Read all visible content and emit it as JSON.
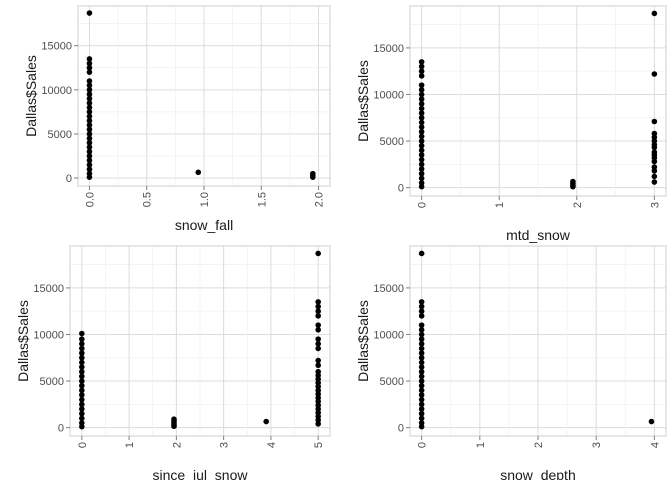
{
  "chart_data": [
    {
      "type": "scatter",
      "xlabel": "snow_fall",
      "ylabel": "Dallas$Sales",
      "xlim": [
        -0.1,
        2.1
      ],
      "ylim": [
        -900,
        19500
      ],
      "x_ticks": [
        0,
        0.5,
        1,
        1.5,
        2
      ],
      "x_tick_labels": [
        "0.0",
        "0.5",
        "1.0",
        "1.5",
        "2.0"
      ],
      "y_ticks": [
        0,
        5000,
        10000,
        15000
      ],
      "y_tick_labels": [
        "0",
        "5000",
        "10000",
        "15000"
      ],
      "grid": true,
      "points": [
        [
          0,
          18700
        ],
        [
          0,
          13500
        ],
        [
          0,
          13000
        ],
        [
          0,
          12500
        ],
        [
          0,
          12000
        ],
        [
          0,
          11000
        ],
        [
          0,
          10500
        ],
        [
          0,
          10000
        ],
        [
          0,
          9500
        ],
        [
          0,
          9000
        ],
        [
          0,
          8500
        ],
        [
          0,
          8000
        ],
        [
          0,
          7500
        ],
        [
          0,
          7000
        ],
        [
          0,
          6500
        ],
        [
          0,
          6000
        ],
        [
          0,
          5500
        ],
        [
          0,
          5000
        ],
        [
          0,
          4500
        ],
        [
          0,
          4000
        ],
        [
          0,
          3500
        ],
        [
          0,
          3000
        ],
        [
          0,
          2500
        ],
        [
          0,
          2000
        ],
        [
          0,
          1500
        ],
        [
          0,
          1000
        ],
        [
          0,
          500
        ],
        [
          0,
          100
        ],
        [
          0.95,
          650
        ],
        [
          1.95,
          500
        ],
        [
          1.95,
          300
        ],
        [
          1.95,
          100
        ]
      ]
    },
    {
      "type": "scatter",
      "xlabel": "mtd_snow",
      "ylabel": "Dallas$Sales",
      "xlim": [
        -0.15,
        3.15
      ],
      "ylim": [
        -900,
        19500
      ],
      "x_ticks": [
        0,
        1,
        2,
        3
      ],
      "x_tick_labels": [
        "0",
        "1",
        "2",
        "3"
      ],
      "y_ticks": [
        0,
        5000,
        10000,
        15000
      ],
      "y_tick_labels": [
        "0",
        "5000",
        "10000",
        "15000"
      ],
      "grid": true,
      "points": [
        [
          0,
          13500
        ],
        [
          0,
          13000
        ],
        [
          0,
          12500
        ],
        [
          0,
          12000
        ],
        [
          0,
          11000
        ],
        [
          0,
          10500
        ],
        [
          0,
          10000
        ],
        [
          0,
          9500
        ],
        [
          0,
          9000
        ],
        [
          0,
          8500
        ],
        [
          0,
          8000
        ],
        [
          0,
          7500
        ],
        [
          0,
          7000
        ],
        [
          0,
          6500
        ],
        [
          0,
          6000
        ],
        [
          0,
          5500
        ],
        [
          0,
          5000
        ],
        [
          0,
          4500
        ],
        [
          0,
          4000
        ],
        [
          0,
          3500
        ],
        [
          0,
          3000
        ],
        [
          0,
          2500
        ],
        [
          0,
          2000
        ],
        [
          0,
          1500
        ],
        [
          0,
          1000
        ],
        [
          0,
          500
        ],
        [
          0,
          100
        ],
        [
          1.95,
          650
        ],
        [
          1.95,
          450
        ],
        [
          1.95,
          250
        ],
        [
          1.95,
          100
        ],
        [
          3,
          18700
        ],
        [
          3,
          12200
        ],
        [
          3,
          7100
        ],
        [
          3,
          5800
        ],
        [
          3,
          5400
        ],
        [
          3,
          5000
        ],
        [
          3,
          4600
        ],
        [
          3,
          4300
        ],
        [
          3,
          3800
        ],
        [
          3,
          3500
        ],
        [
          3,
          3200
        ],
        [
          3,
          2800
        ],
        [
          3,
          2200
        ],
        [
          3,
          1800
        ],
        [
          3,
          1200
        ],
        [
          3,
          600
        ]
      ]
    },
    {
      "type": "scatter",
      "xlabel": "since_jul_snow",
      "ylabel": "Dallas$Sales",
      "xlim": [
        -0.25,
        5.25
      ],
      "ylim": [
        -900,
        19500
      ],
      "x_ticks": [
        0,
        1,
        2,
        3,
        4,
        5
      ],
      "x_tick_labels": [
        "0",
        "1",
        "2",
        "3",
        "4",
        "5"
      ],
      "y_ticks": [
        0,
        5000,
        10000,
        15000
      ],
      "y_tick_labels": [
        "0",
        "5000",
        "10000",
        "15000"
      ],
      "grid": true,
      "points": [
        [
          0,
          10100
        ],
        [
          0,
          9500
        ],
        [
          0,
          9000
        ],
        [
          0,
          8500
        ],
        [
          0,
          8000
        ],
        [
          0,
          7500
        ],
        [
          0,
          7000
        ],
        [
          0,
          6500
        ],
        [
          0,
          6000
        ],
        [
          0,
          5500
        ],
        [
          0,
          5000
        ],
        [
          0,
          4500
        ],
        [
          0,
          4000
        ],
        [
          0,
          3500
        ],
        [
          0,
          3000
        ],
        [
          0,
          2500
        ],
        [
          0,
          2000
        ],
        [
          0,
          1500
        ],
        [
          0,
          1000
        ],
        [
          0,
          500
        ],
        [
          0,
          100
        ],
        [
          1.95,
          900
        ],
        [
          1.95,
          700
        ],
        [
          1.95,
          500
        ],
        [
          1.95,
          300
        ],
        [
          1.95,
          150
        ],
        [
          3.9,
          650
        ],
        [
          5,
          18700
        ],
        [
          5,
          13500
        ],
        [
          5,
          13000
        ],
        [
          5,
          12500
        ],
        [
          5,
          12000
        ],
        [
          5,
          11000
        ],
        [
          5,
          10500
        ],
        [
          5,
          9500
        ],
        [
          5,
          9000
        ],
        [
          5,
          8500
        ],
        [
          5,
          7200
        ],
        [
          5,
          6700
        ],
        [
          5,
          6000
        ],
        [
          5,
          5600
        ],
        [
          5,
          5200
        ],
        [
          5,
          4800
        ],
        [
          5,
          4400
        ],
        [
          5,
          4000
        ],
        [
          5,
          3600
        ],
        [
          5,
          3200
        ],
        [
          5,
          2800
        ],
        [
          5,
          2400
        ],
        [
          5,
          2000
        ],
        [
          5,
          1600
        ],
        [
          5,
          1200
        ],
        [
          5,
          800
        ],
        [
          5,
          400
        ]
      ]
    },
    {
      "type": "scatter",
      "xlabel": "snow_depth",
      "ylabel": "Dallas$Sales",
      "xlim": [
        -0.2,
        4.2
      ],
      "ylim": [
        -900,
        19500
      ],
      "x_ticks": [
        0,
        1,
        2,
        3,
        4
      ],
      "x_tick_labels": [
        "0",
        "1",
        "2",
        "3",
        "4"
      ],
      "y_ticks": [
        0,
        5000,
        10000,
        15000
      ],
      "y_tick_labels": [
        "0",
        "5000",
        "10000",
        "15000"
      ],
      "grid": true,
      "points": [
        [
          0,
          18700
        ],
        [
          0,
          13500
        ],
        [
          0,
          13000
        ],
        [
          0,
          12500
        ],
        [
          0,
          12000
        ],
        [
          0,
          11000
        ],
        [
          0,
          10500
        ],
        [
          0,
          10000
        ],
        [
          0,
          9500
        ],
        [
          0,
          9000
        ],
        [
          0,
          8500
        ],
        [
          0,
          8000
        ],
        [
          0,
          7500
        ],
        [
          0,
          7000
        ],
        [
          0,
          6500
        ],
        [
          0,
          6000
        ],
        [
          0,
          5500
        ],
        [
          0,
          5000
        ],
        [
          0,
          4500
        ],
        [
          0,
          4000
        ],
        [
          0,
          3500
        ],
        [
          0,
          3000
        ],
        [
          0,
          2500
        ],
        [
          0,
          2000
        ],
        [
          0,
          1500
        ],
        [
          0,
          1000
        ],
        [
          0,
          500
        ],
        [
          0,
          100
        ],
        [
          3.95,
          650
        ]
      ]
    }
  ]
}
